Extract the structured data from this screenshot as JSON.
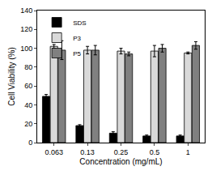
{
  "chart_data": {
    "type": "bar",
    "x_label": "Concentration (mg/mL)",
    "y_label": "Cell Viability (%)",
    "categories": [
      "0.063",
      "0.13",
      "0.25",
      "0.5",
      "1"
    ],
    "series": [
      {
        "name": "SDS",
        "color": "#000000",
        "values": [
          49,
          18,
          10,
          7,
          7
        ],
        "errors": [
          2,
          1,
          1.5,
          1,
          1
        ]
      },
      {
        "name": "P3",
        "color": "#d9d9d9",
        "values": [
          102,
          98,
          97,
          97,
          95
        ],
        "errors": [
          2,
          4,
          3,
          6,
          1
        ]
      },
      {
        "name": "P5",
        "color": "#808080",
        "values": [
          98,
          98,
          94,
          100,
          103
        ],
        "errors": [
          10,
          5,
          2,
          4,
          4
        ]
      }
    ],
    "ylim": [
      0,
      140
    ],
    "yticks": [
      0,
      20,
      40,
      60,
      80,
      100,
      120,
      140
    ],
    "grid": false,
    "legend": "top-left"
  }
}
